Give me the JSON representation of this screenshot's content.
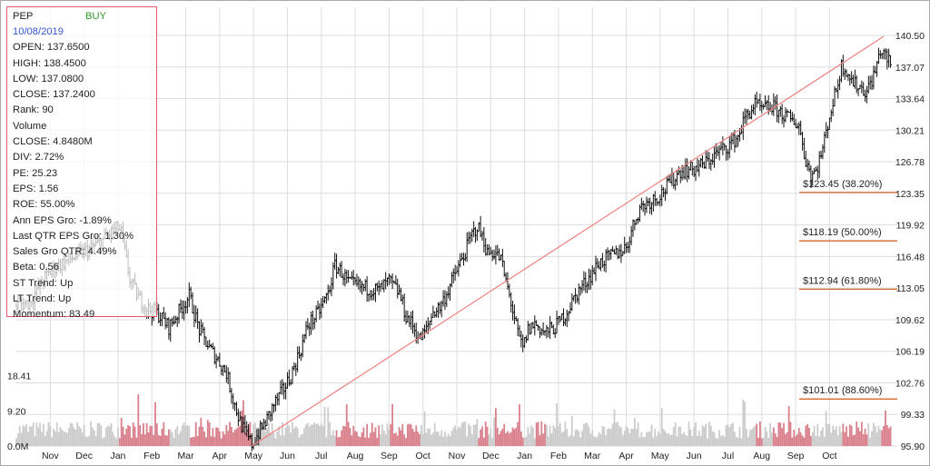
{
  "info": {
    "symbol": "PEP",
    "signal": "BUY",
    "date": "10/08/2019",
    "rows": [
      "OPEN: 137.6500",
      "HIGH: 138.4500",
      "LOW: 137.0800",
      "CLOSE: 137.2400",
      "Rank: 90",
      "Volume",
      "CLOSE: 4.8480M",
      "DIV: 2.72%",
      "PE: 25.23",
      "EPS: 1.56",
      "ROE: 55.00%",
      "Ann EPS Gro: -1.89%",
      "Last QTR EPS Gro: 1.30%",
      "Sales Gro QTR: 4.49%",
      "Beta: 0.56",
      "ST Trend: Up",
      "LT Trend: Up",
      "Momentum: 83.49"
    ]
  },
  "colors": {
    "price": "#111111",
    "trendline": "#f08080",
    "fib_line": "#d05818",
    "volume_up": "#cccccc",
    "volume_down": "#d9808c",
    "grid": "#dddddd",
    "panel_border": "#e05a6a",
    "signal": "#2a9a2a",
    "date": "#3355cc"
  },
  "chart_data": {
    "type": "line",
    "subtype": "daily price bars with volume",
    "y_ticks": [
      "140.50",
      "137.07",
      "133.64",
      "130.21",
      "126.78",
      "123.35",
      "119.92",
      "116.48",
      "113.05",
      "109.62",
      "106.19",
      "102.76",
      "99.33",
      "95.90"
    ],
    "ylim": [
      95.9,
      140.5
    ],
    "y_scale": "linear",
    "y_axis_side": "right",
    "volume_ticks": [
      "18.41",
      "9.20",
      "0.0M"
    ],
    "volume_ylim": [
      0,
      27.6
    ],
    "x_ticks": [
      "Nov",
      "Dec",
      "Jan",
      "Feb",
      "Mar",
      "Apr",
      "May",
      "Jun",
      "Jul",
      "Aug",
      "Sep",
      "Oct",
      "Nov",
      "Dec",
      "Jan",
      "Feb",
      "Mar",
      "Apr",
      "May",
      "Jun",
      "Jul",
      "Aug",
      "Sep",
      "Oct"
    ],
    "grid": true,
    "price_path": [
      [
        0,
        111.2
      ],
      [
        0.4,
        111.5
      ],
      [
        0.8,
        114.0
      ],
      [
        1.2,
        115.5
      ],
      [
        1.6,
        116.2
      ],
      [
        2.0,
        117.0
      ],
      [
        2.4,
        117.8
      ],
      [
        2.7,
        118.8
      ],
      [
        3.0,
        119.6
      ],
      [
        3.1,
        119.0
      ],
      [
        3.35,
        114.0
      ],
      [
        3.6,
        112.0
      ],
      [
        3.9,
        110.8
      ],
      [
        4.2,
        110.2
      ],
      [
        4.5,
        108.8
      ],
      [
        4.8,
        110.5
      ],
      [
        5.1,
        112.2
      ],
      [
        5.4,
        108.5
      ],
      [
        5.7,
        106.5
      ],
      [
        6.0,
        105.0
      ],
      [
        6.2,
        103.8
      ],
      [
        6.4,
        101.0
      ],
      [
        6.6,
        98.5
      ],
      [
        6.8,
        97.0
      ],
      [
        6.95,
        96.1
      ],
      [
        7.2,
        97.6
      ],
      [
        7.4,
        98.8
      ],
      [
        7.6,
        100.4
      ],
      [
        7.8,
        101.5
      ],
      [
        8.1,
        103.5
      ],
      [
        8.4,
        106.5
      ],
      [
        8.6,
        109.0
      ],
      [
        8.9,
        110.3
      ],
      [
        9.2,
        112.5
      ],
      [
        9.4,
        115.5
      ],
      [
        9.6,
        114.8
      ],
      [
        9.8,
        113.6
      ],
      [
        10.1,
        113.2
      ],
      [
        10.4,
        113.0
      ],
      [
        10.7,
        112.8
      ],
      [
        11.0,
        113.8
      ],
      [
        11.3,
        112.5
      ],
      [
        11.5,
        110.0
      ],
      [
        11.7,
        109.0
      ],
      [
        11.9,
        107.5
      ],
      [
        12.1,
        108.5
      ],
      [
        12.3,
        110.5
      ],
      [
        12.5,
        111.0
      ],
      [
        12.7,
        112.5
      ],
      [
        13.0,
        115.0
      ],
      [
        13.2,
        116.5
      ],
      [
        13.4,
        118.5
      ],
      [
        13.6,
        119.8
      ],
      [
        13.8,
        118.2
      ],
      [
        13.9,
        116.8
      ],
      [
        14.1,
        117.0
      ],
      [
        14.3,
        116.2
      ],
      [
        14.4,
        114.5
      ],
      [
        14.6,
        111.5
      ],
      [
        14.8,
        108.0
      ],
      [
        14.95,
        106.5
      ],
      [
        15.1,
        108.5
      ],
      [
        15.3,
        109.2
      ],
      [
        15.6,
        108.2
      ],
      [
        15.9,
        108.8
      ],
      [
        16.2,
        110.2
      ],
      [
        16.4,
        111.5
      ],
      [
        16.6,
        112.8
      ],
      [
        16.9,
        114.2
      ],
      [
        17.2,
        115.8
      ],
      [
        17.4,
        116.2
      ],
      [
        17.7,
        116.8
      ],
      [
        18.0,
        117.5
      ],
      [
        18.2,
        119.8
      ],
      [
        18.4,
        121.8
      ],
      [
        18.7,
        122.5
      ],
      [
        19.0,
        123.2
      ],
      [
        19.3,
        124.5
      ],
      [
        19.6,
        125.8
      ],
      [
        20.0,
        126.0
      ],
      [
        20.3,
        126.5
      ],
      [
        20.7,
        127.8
      ],
      [
        21.0,
        128.5
      ],
      [
        21.3,
        129.5
      ],
      [
        21.5,
        131.5
      ],
      [
        21.8,
        133.0
      ],
      [
        22.0,
        132.4
      ],
      [
        22.3,
        132.8
      ],
      [
        22.6,
        132.0
      ],
      [
        22.9,
        131.2
      ],
      [
        23.1,
        130.8
      ],
      [
        23.25,
        127.6
      ],
      [
        23.45,
        125.4
      ],
      [
        23.6,
        125.8
      ],
      [
        23.8,
        128.2
      ],
      [
        24.0,
        131.8
      ],
      [
        24.2,
        134.6
      ],
      [
        24.35,
        137.2
      ],
      [
        24.5,
        136.8
      ],
      [
        24.7,
        135.3
      ],
      [
        24.9,
        134.9
      ],
      [
        25.1,
        134.4
      ],
      [
        25.35,
        136.6
      ],
      [
        25.5,
        138.9
      ],
      [
        25.7,
        137.9
      ],
      [
        25.85,
        137.24
      ]
    ],
    "trendline": {
      "start": [
        6.95,
        95.9
      ],
      "end": [
        25.6,
        140.4
      ]
    },
    "fib_levels": [
      {
        "label": "$123.45 (38.20%)",
        "value": 123.45
      },
      {
        "label": "$118.19 (50.00%)",
        "value": 118.19
      },
      {
        "label": "$112.94 (61.80%)",
        "value": 112.94
      },
      {
        "label": "$101.01 (88.60%)",
        "value": 101.01
      }
    ]
  }
}
